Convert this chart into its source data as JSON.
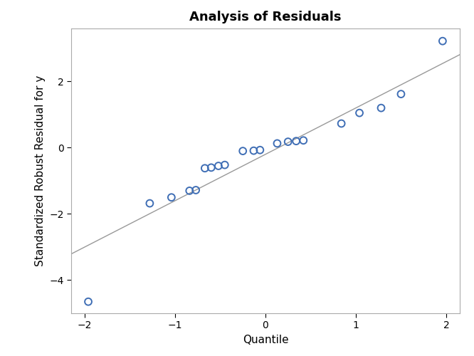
{
  "title": "Analysis of Residuals",
  "xlabel": "Quantile",
  "ylabel": "Standardized Robust Residual for y",
  "xlim": [
    -2.15,
    2.15
  ],
  "ylim": [
    -5.0,
    3.6
  ],
  "xticks": [
    -2,
    -1,
    0,
    1,
    2
  ],
  "yticks": [
    -4,
    -2,
    0,
    2
  ],
  "points_x": [
    -1.96,
    -1.28,
    -1.04,
    -0.84,
    -0.77,
    -0.67,
    -0.6,
    -0.52,
    -0.45,
    -0.25,
    -0.13,
    -0.06,
    0.13,
    0.25,
    0.34,
    0.42,
    0.84,
    1.04,
    1.28,
    1.5,
    1.96
  ],
  "points_y": [
    -4.65,
    -1.68,
    -1.5,
    -1.3,
    -1.28,
    -0.62,
    -0.6,
    -0.55,
    -0.52,
    -0.1,
    -0.09,
    -0.07,
    0.13,
    0.18,
    0.2,
    0.22,
    0.73,
    1.05,
    1.2,
    1.62,
    3.22
  ],
  "line_x": [
    -2.15,
    2.15
  ],
  "line_slope": 1.4,
  "line_intercept": -0.2,
  "point_color": "#3F6EB5",
  "line_color": "#999999",
  "bg_color": "#FFFFFF",
  "plot_bg_color": "#FFFFFF",
  "title_fontsize": 13,
  "label_fontsize": 11,
  "tick_fontsize": 10,
  "marker_size": 50,
  "marker_linewidth": 1.4,
  "line_linewidth": 1.0
}
